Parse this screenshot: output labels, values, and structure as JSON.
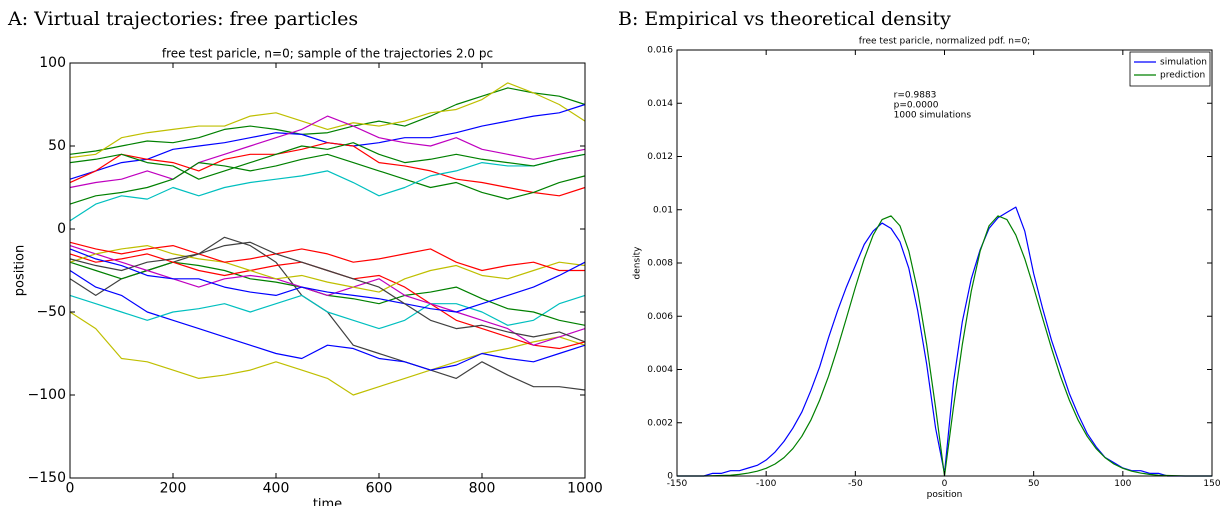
{
  "chart_data": [
    {
      "type": "line",
      "heading": "A: Virtual trajectories: free particles",
      "title": "free test paricle, n=0; sample of the trajectories 2.0 pc",
      "x_label": "time",
      "y_label": "position",
      "x": [
        0,
        50,
        100,
        150,
        200,
        250,
        300,
        350,
        400,
        450,
        500,
        550,
        600,
        650,
        700,
        750,
        800,
        850,
        900,
        950,
        1000
      ],
      "xlim": [
        0,
        1000
      ],
      "xticks": [
        0,
        200,
        400,
        600,
        800,
        1000
      ],
      "ylim": [
        -150,
        100
      ],
      "yticks": [
        {
          "value": -150,
          "label": "−150"
        },
        {
          "value": -100,
          "label": "−100"
        },
        {
          "value": -50,
          "label": "−50"
        },
        0,
        50,
        100
      ],
      "grid": false,
      "series": [
        {
          "color": "#008000",
          "values": [
            45,
            47,
            50,
            53,
            52,
            55,
            60,
            62,
            60,
            57,
            58,
            62,
            65,
            62,
            68,
            75,
            80,
            85,
            82,
            80,
            75
          ]
        },
        {
          "color": "#bfbf00",
          "values": [
            43,
            45,
            55,
            58,
            60,
            62,
            62,
            68,
            70,
            65,
            60,
            64,
            62,
            65,
            70,
            72,
            78,
            88,
            82,
            75,
            65
          ]
        },
        {
          "color": "#0000ff",
          "values": [
            30,
            35,
            40,
            42,
            48,
            50,
            52,
            55,
            58,
            57,
            52,
            50,
            52,
            55,
            55,
            58,
            62,
            65,
            68,
            70,
            75
          ]
        },
        {
          "color": "#ff0000",
          "values": [
            28,
            35,
            45,
            42,
            40,
            35,
            42,
            45,
            45,
            48,
            52,
            50,
            40,
            38,
            35,
            30,
            28,
            25,
            22,
            20,
            25
          ]
        },
        {
          "color": "#bf00bf",
          "values": [
            25,
            28,
            30,
            35,
            30,
            40,
            45,
            50,
            55,
            60,
            68,
            62,
            55,
            52,
            50,
            55,
            48,
            45,
            42,
            45,
            48
          ]
        },
        {
          "color": "#008000",
          "values": [
            15,
            20,
            22,
            25,
            30,
            40,
            38,
            35,
            38,
            42,
            45,
            40,
            35,
            30,
            25,
            28,
            22,
            18,
            22,
            28,
            32
          ]
        },
        {
          "color": "#00bfbf",
          "values": [
            5,
            15,
            20,
            18,
            25,
            20,
            25,
            28,
            30,
            32,
            35,
            28,
            20,
            25,
            32,
            35,
            40,
            38,
            38,
            42,
            45
          ]
        },
        {
          "color": "#008000",
          "values": [
            40,
            42,
            45,
            40,
            38,
            30,
            35,
            40,
            45,
            50,
            48,
            52,
            45,
            40,
            42,
            45,
            42,
            40,
            38,
            42,
            45
          ]
        },
        {
          "color": "#bfbf00",
          "values": [
            -50,
            -60,
            -78,
            -80,
            -85,
            -90,
            -88,
            -85,
            -80,
            -85,
            -90,
            -100,
            -95,
            -90,
            -85,
            -80,
            -75,
            -72,
            -68,
            -65,
            -70
          ]
        },
        {
          "color": "#404040",
          "values": [
            -30,
            -40,
            -30,
            -25,
            -20,
            -15,
            -5,
            -10,
            -20,
            -40,
            -50,
            -70,
            -75,
            -80,
            -85,
            -90,
            -80,
            -88,
            -95,
            -95,
            -97
          ]
        },
        {
          "color": "#0000ff",
          "values": [
            -25,
            -35,
            -40,
            -50,
            -55,
            -60,
            -65,
            -70,
            -75,
            -78,
            -70,
            -72,
            -78,
            -80,
            -85,
            -82,
            -75,
            -78,
            -80,
            -75,
            -70
          ]
        },
        {
          "color": "#00bfbf",
          "values": [
            -40,
            -45,
            -50,
            -55,
            -50,
            -48,
            -45,
            -50,
            -45,
            -40,
            -50,
            -55,
            -60,
            -55,
            -45,
            -45,
            -50,
            -58,
            -55,
            -45,
            -40
          ]
        },
        {
          "color": "#008000",
          "values": [
            -20,
            -25,
            -30,
            -25,
            -20,
            -22,
            -25,
            -30,
            -32,
            -35,
            -40,
            -42,
            -45,
            -40,
            -38,
            -35,
            -42,
            -48,
            -50,
            -55,
            -58
          ]
        },
        {
          "color": "#ff0000",
          "values": [
            -15,
            -20,
            -18,
            -15,
            -20,
            -25,
            -28,
            -25,
            -22,
            -20,
            -25,
            -30,
            -28,
            -35,
            -45,
            -55,
            -60,
            -65,
            -70,
            -72,
            -68
          ]
        },
        {
          "color": "#bf00bf",
          "values": [
            -10,
            -15,
            -20,
            -25,
            -30,
            -35,
            -30,
            -28,
            -30,
            -35,
            -40,
            -35,
            -30,
            -40,
            -45,
            -50,
            -55,
            -60,
            -70,
            -65,
            -60
          ]
        },
        {
          "color": "#bfbf00",
          "values": [
            -20,
            -15,
            -12,
            -10,
            -15,
            -18,
            -20,
            -25,
            -30,
            -28,
            -32,
            -35,
            -38,
            -30,
            -25,
            -22,
            -28,
            -30,
            -25,
            -20,
            -22
          ]
        },
        {
          "color": "#ff0000",
          "values": [
            -8,
            -12,
            -15,
            -12,
            -10,
            -15,
            -20,
            -18,
            -15,
            -12,
            -15,
            -20,
            -18,
            -15,
            -12,
            -20,
            -25,
            -22,
            -20,
            -25,
            -25
          ]
        },
        {
          "color": "#0000ff",
          "values": [
            -12,
            -18,
            -22,
            -28,
            -30,
            -30,
            -35,
            -38,
            -40,
            -35,
            -38,
            -40,
            -42,
            -45,
            -48,
            -50,
            -45,
            -40,
            -35,
            -28,
            -20
          ]
        },
        {
          "color": "#404040",
          "values": [
            -18,
            -22,
            -25,
            -20,
            -18,
            -15,
            -10,
            -8,
            -15,
            -20,
            -25,
            -30,
            -35,
            -45,
            -55,
            -60,
            -58,
            -62,
            -65,
            -62,
            -68
          ]
        }
      ]
    },
    {
      "type": "line",
      "heading": "B: Empirical vs theoretical density",
      "title": "free test paricle, normalized pdf. n=0;",
      "x_label": "position",
      "y_label": "density",
      "annotations": [
        "r=0.9883",
        "p=0.0000",
        "1000 simulations"
      ],
      "x": [
        -150,
        -145,
        -140,
        -135,
        -130,
        -125,
        -120,
        -115,
        -110,
        -105,
        -100,
        -95,
        -90,
        -85,
        -80,
        -75,
        -70,
        -65,
        -60,
        -55,
        -50,
        -45,
        -40,
        -35,
        -30,
        -25,
        -20,
        -15,
        -10,
        -5,
        0,
        5,
        10,
        15,
        20,
        25,
        30,
        35,
        40,
        45,
        50,
        55,
        60,
        65,
        70,
        75,
        80,
        85,
        90,
        95,
        100,
        105,
        110,
        115,
        120,
        125,
        130,
        135,
        140,
        145,
        150
      ],
      "xlim": [
        -150,
        150
      ],
      "xticks": [
        {
          "value": -150,
          "label": "-150"
        },
        {
          "value": -100,
          "label": "-100"
        },
        {
          "value": -50,
          "label": "-50"
        },
        0,
        50,
        100,
        150
      ],
      "ylim": [
        0,
        0.016
      ],
      "yticks": [
        0,
        0.002,
        0.004,
        0.006,
        0.008,
        0.01,
        0.012,
        0.014,
        0.016
      ],
      "grid": false,
      "legend": "top-right",
      "series": [
        {
          "name": "simulation",
          "color": "#0000ff",
          "values": [
            0,
            0,
            0,
            0,
            0.0001,
            0.0001,
            0.0002,
            0.0002,
            0.0003,
            0.0004,
            0.0006,
            0.0009,
            0.0013,
            0.0018,
            0.0024,
            0.0032,
            0.0041,
            0.0052,
            0.0062,
            0.0071,
            0.0079,
            0.0087,
            0.0092,
            0.0095,
            0.0093,
            0.0088,
            0.0078,
            0.0062,
            0.0042,
            0.0018,
            0.0001,
            0.0035,
            0.0058,
            0.0074,
            0.0085,
            0.0093,
            0.0097,
            0.0099,
            0.0101,
            0.0092,
            0.0076,
            0.0063,
            0.0051,
            0.0041,
            0.0031,
            0.0023,
            0.0016,
            0.0011,
            0.0007,
            0.0005,
            0.0003,
            0.0002,
            0.0002,
            0.0001,
            0.0001,
            0,
            0,
            0,
            0,
            0,
            0
          ]
        },
        {
          "name": "prediction",
          "color": "#008000",
          "values": [
            0,
            0,
            0,
            0,
            1e-05,
            2e-05,
            3e-05,
            6e-05,
            0.00011,
            0.00018,
            0.00029,
            0.00045,
            0.00069,
            0.00103,
            0.00149,
            0.00209,
            0.00285,
            0.00375,
            0.0048,
            0.00593,
            0.00708,
            0.00816,
            0.00905,
            0.00963,
            0.00977,
            0.0094,
            0.00845,
            0.00694,
            0.00494,
            0.00257,
            0,
            0.00257,
            0.00494,
            0.00694,
            0.00845,
            0.0094,
            0.00977,
            0.00963,
            0.00905,
            0.00816,
            0.00708,
            0.00593,
            0.0048,
            0.00375,
            0.00285,
            0.00209,
            0.00149,
            0.00103,
            0.00069,
            0.00045,
            0.00029,
            0.00018,
            0.00011,
            6e-05,
            3e-05,
            2e-05,
            1e-05,
            0,
            0,
            0,
            0
          ]
        }
      ]
    }
  ]
}
